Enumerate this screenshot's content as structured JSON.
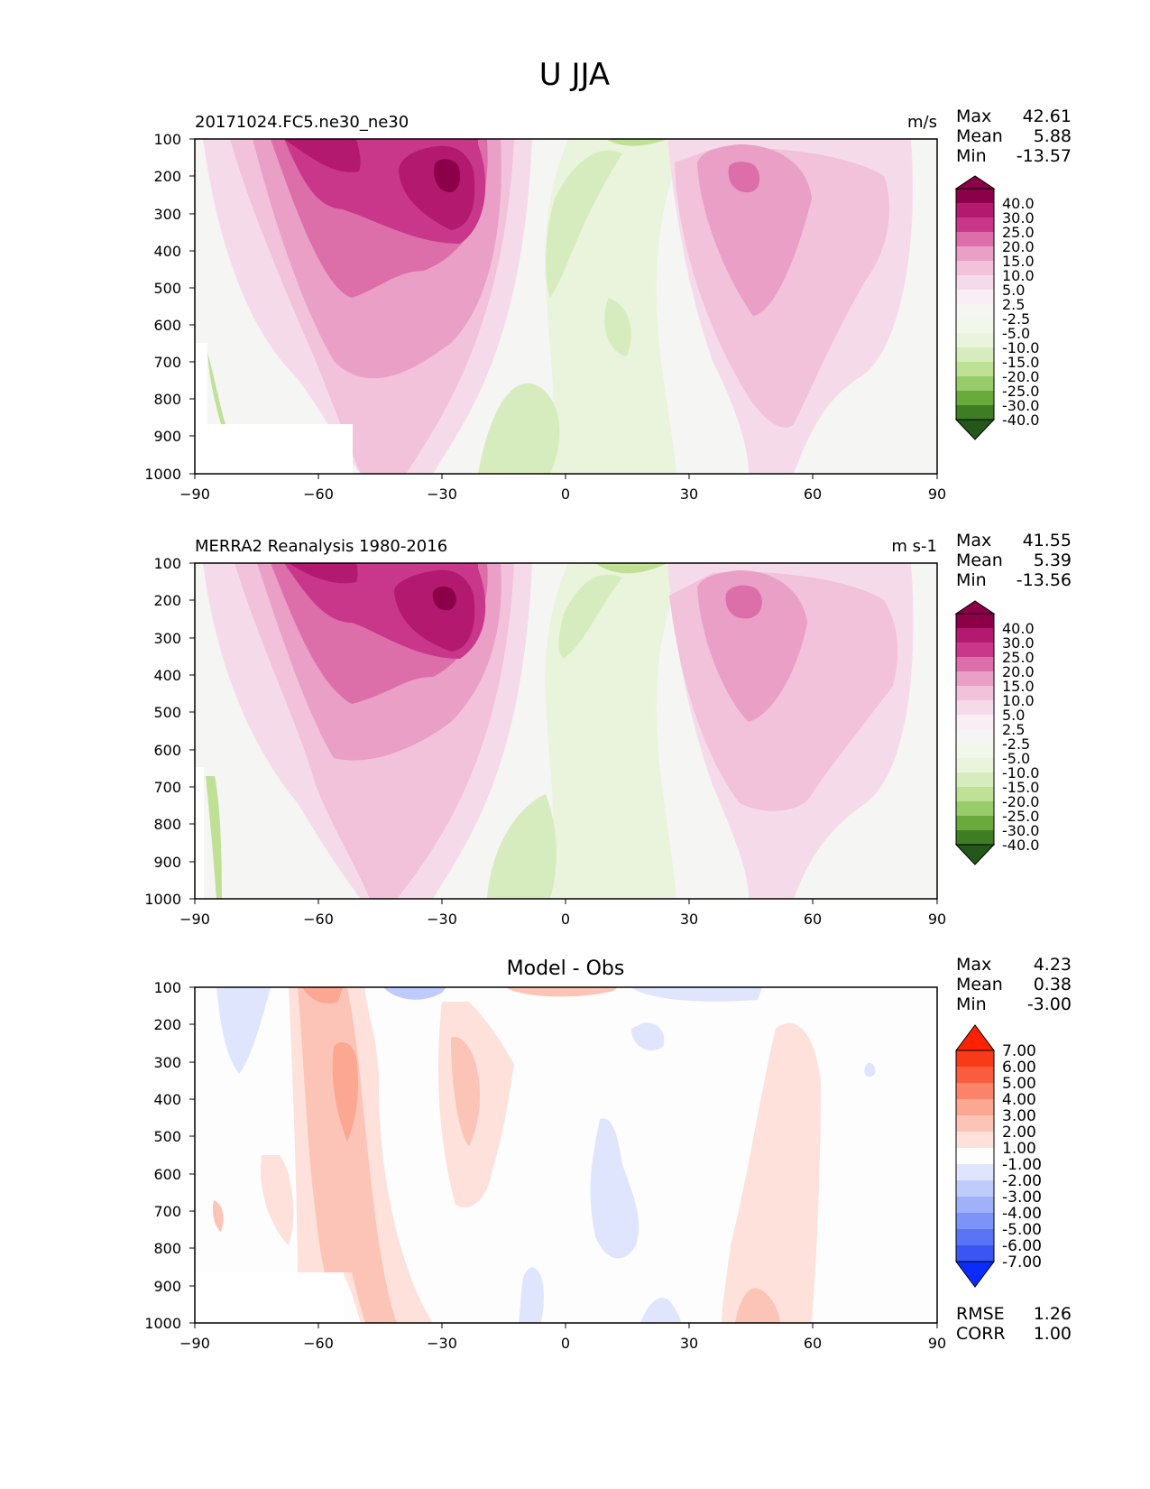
{
  "figure_title": "U JJA",
  "colors": {
    "u_positive": [
      "#f5dbe9",
      "#f2c1da",
      "#e99fc6",
      "#dc6fa9",
      "#c9378b",
      "#b2196f",
      "#8c0049"
    ],
    "u_negative": [
      "#eaf4dc",
      "#d7ecbe",
      "#bfe196",
      "#98cc6a",
      "#6aa93c",
      "#3f7d24",
      "#25571a"
    ],
    "u_near_zero": "#f5f5f3",
    "diff_positive": [
      "#fde1da",
      "#fcc4b6",
      "#fba792",
      "#fa846a",
      "#f95d3f",
      "#f83a18",
      "#ff2200"
    ],
    "diff_negative": [
      "#dfe5fd",
      "#bfcbfb",
      "#a0b1f9",
      "#7d93f7",
      "#5b73f5",
      "#3a55f3",
      "#0b2cff"
    ],
    "diff_near_zero": "#fdfdfd"
  },
  "chart_data": [
    {
      "type": "contourf",
      "panel": "test",
      "title_left": "20171024.FC5.ne30_ne30",
      "title_right": "m/s",
      "x_ticks": [
        "−90",
        "−60",
        "−30",
        "0",
        "30",
        "60",
        "90"
      ],
      "y_ticks": [
        "100",
        "200",
        "300",
        "400",
        "500",
        "600",
        "700",
        "800",
        "900",
        "1000"
      ],
      "xlim": [
        -90,
        90
      ],
      "ylim": [
        1000,
        100
      ],
      "stats": [
        {
          "label": "Max",
          "value": "42.61"
        },
        {
          "label": "Mean",
          "value": "5.88"
        },
        {
          "label": "Min",
          "value": "-13.57"
        }
      ],
      "colorbar_labels": [
        "40.0",
        "30.0",
        "25.0",
        "20.0",
        "15.0",
        "10.0",
        "5.0",
        "2.5",
        "-2.5",
        "-5.0",
        "-10.0",
        "-15.0",
        "-20.0",
        "-25.0",
        "-30.0",
        "-40.0"
      ],
      "features": [
        {
          "name": "southern-jet",
          "lat": -29,
          "p": 200,
          "peak": 42.6,
          "region": "jet-core-sh"
        },
        {
          "name": "northern-jet",
          "lat": 45,
          "p": 200,
          "peak": 24.0,
          "region": "jet-core-nh"
        },
        {
          "name": "tropical-easterlies",
          "min": -13.6,
          "region": "tropics"
        }
      ]
    },
    {
      "type": "contourf",
      "panel": "reference",
      "title_left": "MERRA2 Reanalysis 1980-2016",
      "title_right": "m s-1",
      "x_ticks": [
        "−90",
        "−60",
        "−30",
        "0",
        "30",
        "60",
        "90"
      ],
      "y_ticks": [
        "100",
        "200",
        "300",
        "400",
        "500",
        "600",
        "700",
        "800",
        "900",
        "1000"
      ],
      "xlim": [
        -90,
        90
      ],
      "ylim": [
        1000,
        100
      ],
      "stats": [
        {
          "label": "Max",
          "value": "41.55"
        },
        {
          "label": "Mean",
          "value": "5.39"
        },
        {
          "label": "Min",
          "value": "-13.56"
        }
      ],
      "colorbar_labels": [
        "40.0",
        "30.0",
        "25.0",
        "20.0",
        "15.0",
        "10.0",
        "5.0",
        "2.5",
        "-2.5",
        "-5.0",
        "-10.0",
        "-15.0",
        "-20.0",
        "-25.0",
        "-30.0",
        "-40.0"
      ],
      "features": [
        {
          "name": "southern-jet",
          "lat": -30,
          "p": 200,
          "peak": 41.6,
          "region": "jet-core-sh"
        },
        {
          "name": "northern-jet",
          "lat": 43,
          "p": 200,
          "peak": 22.0,
          "region": "jet-core-nh"
        },
        {
          "name": "tropical-easterlies",
          "min": -13.6,
          "region": "tropics"
        }
      ]
    },
    {
      "type": "contourf",
      "panel": "difference",
      "title_center": "Model - Obs",
      "x_ticks": [
        "−90",
        "−60",
        "−30",
        "0",
        "30",
        "60",
        "90"
      ],
      "y_ticks": [
        "100",
        "200",
        "300",
        "400",
        "500",
        "600",
        "700",
        "800",
        "900",
        "1000"
      ],
      "xlim": [
        -90,
        90
      ],
      "ylim": [
        1000,
        100
      ],
      "stats": [
        {
          "label": "Max",
          "value": "4.23"
        },
        {
          "label": "Mean",
          "value": "0.38"
        },
        {
          "label": "Min",
          "value": "-3.00"
        }
      ],
      "colorbar_labels": [
        "7.00",
        "6.00",
        "5.00",
        "4.00",
        "3.00",
        "2.00",
        "1.00",
        "-1.00",
        "-2.00",
        "-3.00",
        "-4.00",
        "-5.00",
        "-6.00",
        "-7.00"
      ],
      "rmse": {
        "label": "RMSE",
        "value": "1.26"
      },
      "corr": {
        "label": "CORR",
        "value": "1.00"
      }
    }
  ]
}
